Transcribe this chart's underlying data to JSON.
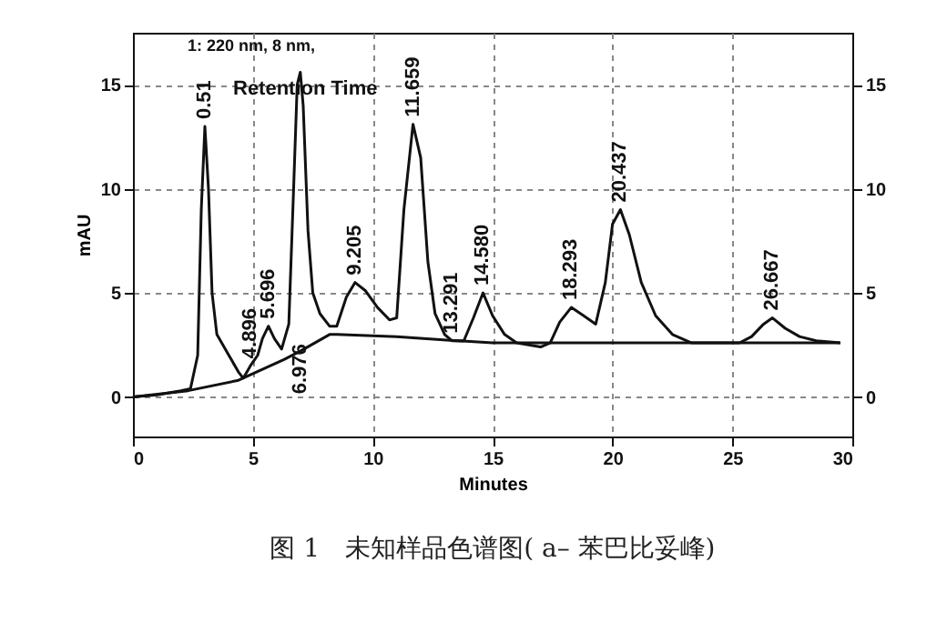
{
  "chart_data": {
    "type": "line",
    "title": "图 1　未知样品色谱图( a–  苯巴比妥峰)",
    "xlabel": "Minutes",
    "ylabel": "mAU",
    "xlim": [
      0,
      30
    ],
    "xticks": [
      0,
      5,
      10,
      15,
      20,
      25,
      30
    ],
    "ylim": [
      -1.9,
      17.5
    ],
    "yticks": [
      0,
      5,
      10,
      15
    ],
    "y2lim": [
      -1.9,
      17.5
    ],
    "y2ticks": [
      0,
      5,
      10,
      15
    ],
    "grid": true,
    "marker": "none",
    "line_style": "solid",
    "series": [
      {
        "color": "#111111",
        "x": [
          0,
          1,
          2,
          2.4,
          2.7,
          2.85,
          3.0,
          3.15,
          3.3,
          3.5,
          4.0,
          4.4,
          4.6,
          4.9,
          5.2,
          5.4,
          5.65,
          5.9,
          6.2,
          6.5,
          6.7,
          6.85,
          6.98,
          7.1,
          7.3,
          7.5,
          7.8,
          8.2,
          8.5,
          8.9,
          9.26,
          9.7,
          10.2,
          10.7,
          11.0,
          11.3,
          11.68,
          12.0,
          12.3,
          12.6,
          13.0,
          13.3,
          13.8,
          14.2,
          14.6,
          15.0,
          15.5,
          16.0,
          16.5,
          17.0,
          17.4,
          17.8,
          18.28,
          18.8,
          19.3,
          19.7,
          20.0,
          20.33,
          20.7,
          21.2,
          21.8,
          22.5,
          23.3,
          24.5,
          25.3,
          25.8,
          26.3,
          26.67,
          27.2,
          27.8,
          28.5,
          29.5
        ],
        "values": [
          0,
          0.1,
          0.3,
          0.4,
          2,
          9,
          13.0,
          10,
          5,
          3,
          2,
          1.2,
          0.9,
          1.5,
          2.0,
          2.8,
          3.4,
          2.8,
          2.3,
          3.5,
          10,
          15.0,
          15.6,
          14,
          8,
          5.0,
          4.0,
          3.4,
          3.4,
          4.8,
          5.5,
          5.1,
          4.3,
          3.7,
          3.8,
          9,
          13.1,
          11.5,
          6.5,
          4,
          3.0,
          2.7,
          2.7,
          3.8,
          5.0,
          3.9,
          3.0,
          2.6,
          2.5,
          2.4,
          2.6,
          3.6,
          4.3,
          3.9,
          3.5,
          5.5,
          8.3,
          9.0,
          7.8,
          5.5,
          3.9,
          3.0,
          2.6,
          2.6,
          2.6,
          2.9,
          3.5,
          3.8,
          3.3,
          2.9,
          2.7,
          2.6
        ]
      },
      {
        "color": "#111111",
        "x": [
          0,
          2.3,
          4.4,
          6.3,
          6.98,
          8.2,
          8.5,
          11,
          13.5,
          15,
          17.2,
          29.5
        ],
        "values": [
          0,
          0.3,
          0.8,
          1.8,
          2.2,
          3.0,
          3.0,
          2.9,
          2.7,
          2.6,
          2.6,
          2.6
        ]
      }
    ],
    "annotations": [
      "1: 220 nm, 8 nm,",
      "Retention Time",
      {
        "text": "0.51",
        "x": 3.0,
        "y": 13.0
      },
      {
        "text": "4.896",
        "x": 4.9,
        "y": 1.5
      },
      {
        "text": "5.696",
        "x": 5.65,
        "y": 3.4
      },
      {
        "text": "6.976",
        "x": 6.98,
        "y": 2.2
      },
      {
        "text": "9.205",
        "x": 9.26,
        "y": 5.5
      },
      {
        "text": "11.659",
        "x": 11.68,
        "y": 13.1
      },
      {
        "text": "13.291",
        "x": 13.3,
        "y": 2.7
      },
      {
        "text": "14.580",
        "x": 14.6,
        "y": 5.0
      },
      {
        "text": "18.293",
        "x": 18.28,
        "y": 4.3
      },
      {
        "text": "20.437",
        "x": 20.33,
        "y": 9.0
      },
      {
        "text": "26.667",
        "x": 26.67,
        "y": 3.8
      }
    ]
  }
}
